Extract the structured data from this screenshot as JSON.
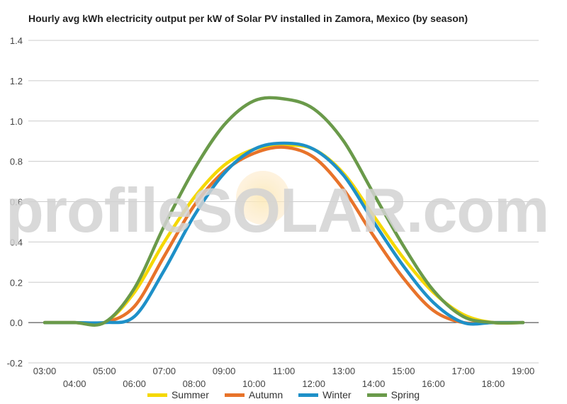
{
  "chart_data": {
    "type": "line",
    "title": "Hourly avg kWh electricity output per kW of Solar PV installed in Zamora, Mexico (by season)",
    "xlabel": "",
    "ylabel": "",
    "x": [
      "03:00",
      "04:00",
      "05:00",
      "06:00",
      "07:00",
      "08:00",
      "09:00",
      "10:00",
      "11:00",
      "12:00",
      "13:00",
      "14:00",
      "15:00",
      "16:00",
      "17:00",
      "18:00",
      "19:00"
    ],
    "ylim": [
      -0.2,
      1.4
    ],
    "yticks": [
      "-0.2",
      "0.0",
      "0.2",
      "0.4",
      "0.6",
      "0.8",
      "1.0",
      "1.2",
      "1.4"
    ],
    "grid": true,
    "legend_position": "bottom",
    "series": [
      {
        "name": "Summer",
        "color": "#f5d800",
        "values": [
          0.0,
          0.0,
          0.0,
          0.15,
          0.4,
          0.62,
          0.78,
          0.86,
          0.88,
          0.86,
          0.74,
          0.53,
          0.32,
          0.15,
          0.04,
          0.0,
          0.0
        ]
      },
      {
        "name": "Autumn",
        "color": "#e8732a",
        "values": [
          0.0,
          0.0,
          0.0,
          0.08,
          0.33,
          0.58,
          0.75,
          0.84,
          0.87,
          0.82,
          0.66,
          0.43,
          0.22,
          0.06,
          0.0,
          0.0,
          0.0
        ]
      },
      {
        "name": "Winter",
        "color": "#1e90c8",
        "values": [
          0.0,
          0.0,
          0.0,
          0.03,
          0.26,
          0.53,
          0.74,
          0.86,
          0.89,
          0.86,
          0.73,
          0.5,
          0.28,
          0.1,
          0.0,
          0.0,
          0.0
        ]
      },
      {
        "name": "Spring",
        "color": "#6a9a4a",
        "values": [
          0.0,
          0.0,
          0.0,
          0.17,
          0.48,
          0.76,
          0.98,
          1.1,
          1.11,
          1.06,
          0.9,
          0.64,
          0.38,
          0.16,
          0.03,
          0.0,
          0.0
        ]
      }
    ],
    "watermark": "profileSOLAR.com"
  }
}
